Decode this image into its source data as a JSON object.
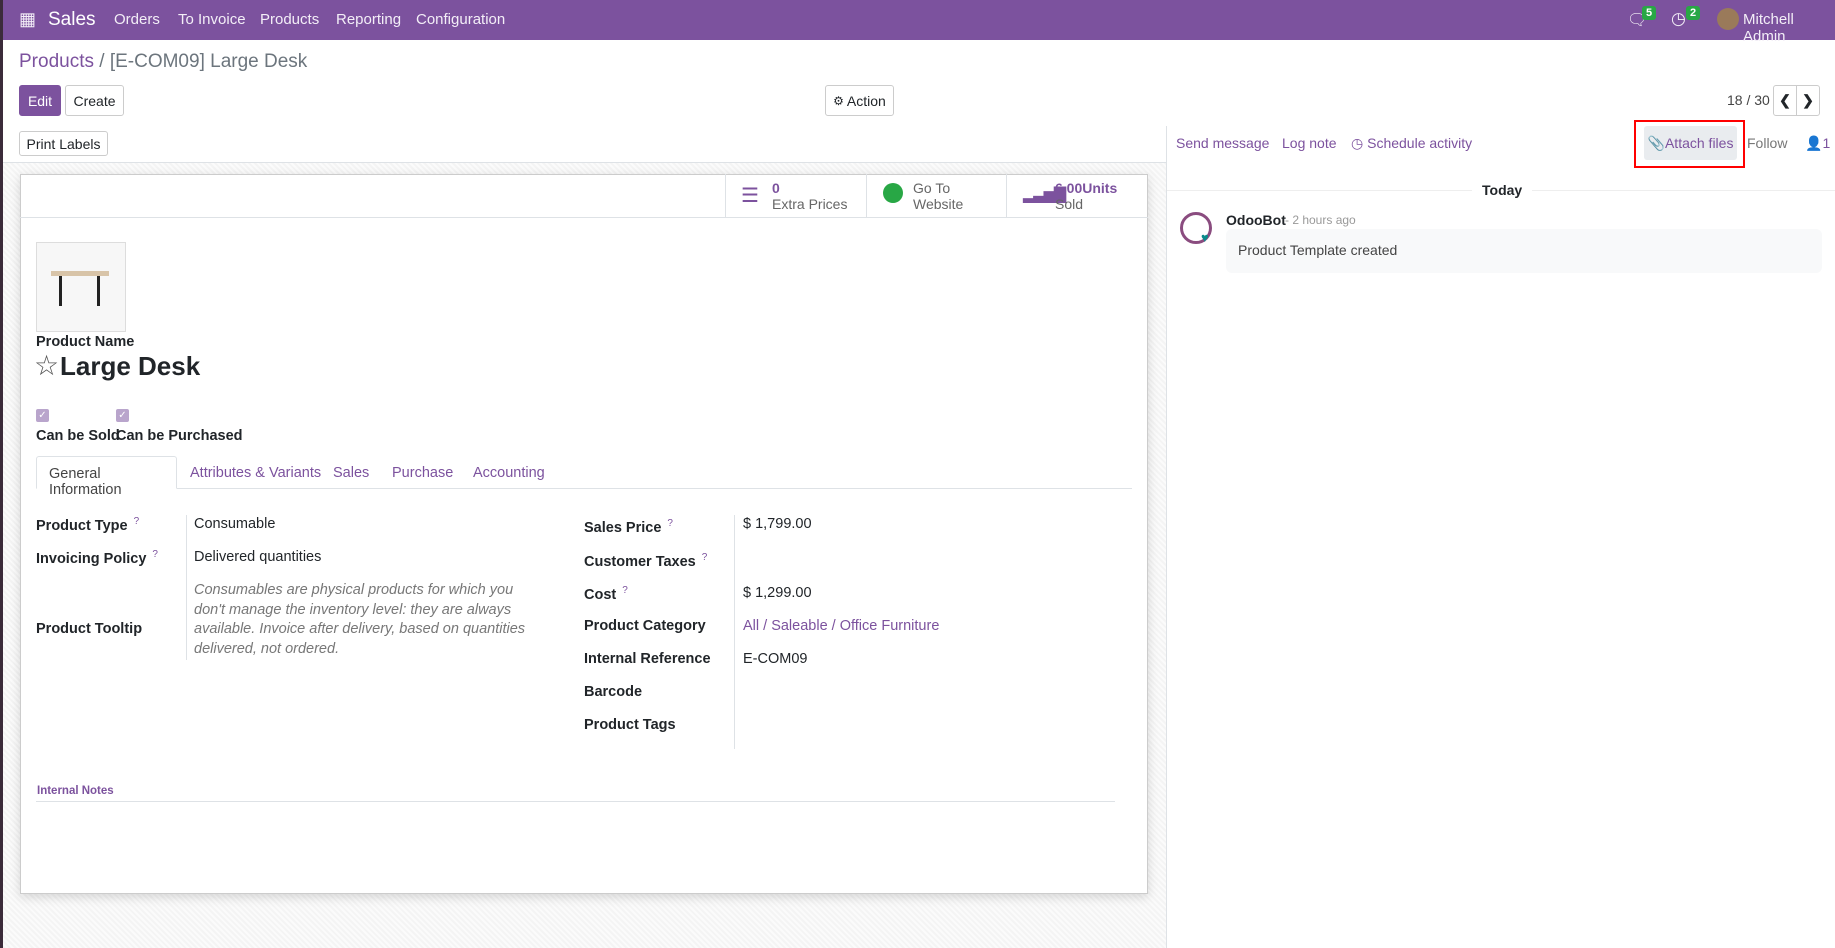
{
  "navbar": {
    "app": "Sales",
    "menu": [
      "Orders",
      "To Invoice",
      "Products",
      "Reporting",
      "Configuration"
    ],
    "messages_count": "5",
    "activities_count": "2",
    "user": "Mitchell Admin"
  },
  "breadcrumb": {
    "parent": "Products",
    "separator": "/",
    "current": "[E-COM09] Large Desk"
  },
  "controls": {
    "edit": "Edit",
    "create": "Create",
    "action": "Action",
    "pager": "18 / 30"
  },
  "statusbar": {
    "print_labels": "Print Labels"
  },
  "stats": [
    {
      "value": "0",
      "label": "Extra Prices"
    },
    {
      "value": "Go To",
      "label": "Website"
    },
    {
      "value": "6.00Units",
      "label": "Sold"
    }
  ],
  "product": {
    "name_label": "Product Name",
    "name": "Large Desk",
    "can_be_sold": "Can be Sold",
    "can_be_purchased": "Can be Purchased",
    "sold_checked": true,
    "purchased_checked": true
  },
  "tabs": [
    "General Information",
    "Attributes & Variants",
    "Sales",
    "Purchase",
    "Accounting"
  ],
  "left_fields": [
    {
      "label": "Product Type",
      "value": "Consumable"
    },
    {
      "label": "Invoicing Policy",
      "value": "Delivered quantities"
    },
    {
      "label": "Product Tooltip",
      "value": "Consumables are physical products for which you don't manage the inventory level: they are always available. Invoice after delivery, based on quantities delivered, not ordered."
    }
  ],
  "right_fields": [
    {
      "label": "Sales Price",
      "value": "$ 1,799.00"
    },
    {
      "label": "Customer Taxes",
      "value": ""
    },
    {
      "label": "Cost",
      "value": "$ 1,299.00"
    },
    {
      "label": "Product Category",
      "value": "All / Saleable / Office Furniture"
    },
    {
      "label": "Internal Reference",
      "value": "E-COM09"
    },
    {
      "label": "Barcode",
      "value": ""
    },
    {
      "label": "Product Tags",
      "value": ""
    }
  ],
  "help_mark": "?",
  "internal_notes": "Internal Notes",
  "chatter": {
    "send_message": "Send message",
    "log_note": "Log note",
    "schedule_activity": "Schedule activity",
    "attach_files": "Attach files",
    "follow": "Follow",
    "followers": "1",
    "day": "Today",
    "author": "OdooBot",
    "time": "- 2 hours ago",
    "message": "Product Template created"
  },
  "colors": {
    "brand": "#7c529e",
    "badge": "#28a745",
    "highlight": "#ff0000"
  }
}
